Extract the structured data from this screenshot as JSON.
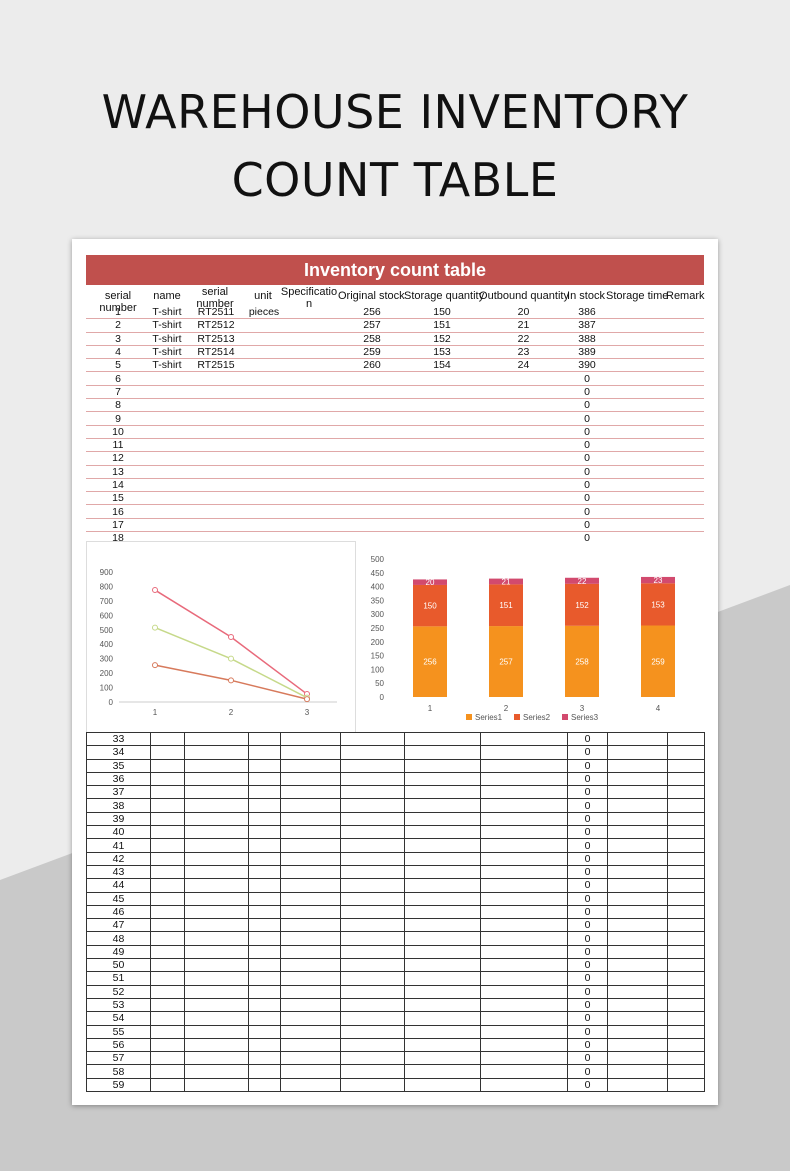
{
  "poster": {
    "title_line1": "WAREHOUSE INVENTORY",
    "title_line2": "COUNT TABLE"
  },
  "table": {
    "banner": "Inventory count table",
    "headers": [
      "serial number",
      "name",
      "serial number",
      "unit",
      "Specification",
      "Original stock",
      "Storage quantity",
      "Outbound quantity",
      "In stock",
      "Storage time",
      "Remark"
    ],
    "rows": [
      {
        "no": "1",
        "name": "T-shirt",
        "code": "RT2511",
        "unit": "pieces",
        "spec": "",
        "orig": "256",
        "storage": "150",
        "out": "20",
        "stock": "386"
      },
      {
        "no": "2",
        "name": "T-shirt",
        "code": "RT2512",
        "unit": "",
        "spec": "",
        "orig": "257",
        "storage": "151",
        "out": "21",
        "stock": "387"
      },
      {
        "no": "3",
        "name": "T-shirt",
        "code": "RT2513",
        "unit": "",
        "spec": "",
        "orig": "258",
        "storage": "152",
        "out": "22",
        "stock": "388"
      },
      {
        "no": "4",
        "name": "T-shirt",
        "code": "RT2514",
        "unit": "",
        "spec": "",
        "orig": "259",
        "storage": "153",
        "out": "23",
        "stock": "389"
      },
      {
        "no": "5",
        "name": "T-shirt",
        "code": "RT2515",
        "unit": "",
        "spec": "",
        "orig": "260",
        "storage": "154",
        "out": "24",
        "stock": "390"
      }
    ],
    "empty_rows_top": [
      "6",
      "7",
      "8",
      "9",
      "10",
      "11",
      "12",
      "13",
      "14",
      "15",
      "16",
      "17",
      "18"
    ],
    "empty_rows_bottom": [
      "33",
      "34",
      "35",
      "36",
      "37",
      "38",
      "39",
      "40",
      "41",
      "42",
      "43",
      "44",
      "45",
      "46",
      "47",
      "48",
      "49",
      "50",
      "51",
      "52",
      "53",
      "54",
      "55",
      "56",
      "57",
      "58",
      "59"
    ],
    "zero_value": "0"
  },
  "chart_data": [
    {
      "type": "line",
      "x": [
        1,
        2,
        3
      ],
      "series": [
        {
          "values": [
            775,
            450,
            55
          ],
          "color": "#e86a7b"
        },
        {
          "values": [
            515,
            300,
            30
          ],
          "color": "#c6d98a"
        },
        {
          "values": [
            255,
            150,
            20
          ],
          "color": "#d77a5c"
        }
      ],
      "ylim": [
        0,
        900
      ],
      "yticks": [
        "900",
        "800",
        "700",
        "600",
        "500",
        "400",
        "300",
        "200",
        "100",
        "0"
      ],
      "xticks": [
        "1",
        "2",
        "3"
      ]
    },
    {
      "type": "bar",
      "stacked": true,
      "categories": [
        "1",
        "2",
        "3",
        "4"
      ],
      "series": [
        {
          "name": "Series1",
          "values": [
            256,
            257,
            258,
            259
          ],
          "color": "#f5921e"
        },
        {
          "name": "Series2",
          "values": [
            150,
            151,
            152,
            153
          ],
          "color": "#e85a2c"
        },
        {
          "name": "Series3",
          "values": [
            20,
            21,
            22,
            23
          ],
          "color": "#d24a6e"
        }
      ],
      "ylim": [
        0,
        500
      ],
      "yticks": [
        "500",
        "450",
        "400",
        "350",
        "300",
        "250",
        "200",
        "150",
        "100",
        "50",
        "0"
      ],
      "legend": "bottom"
    }
  ]
}
